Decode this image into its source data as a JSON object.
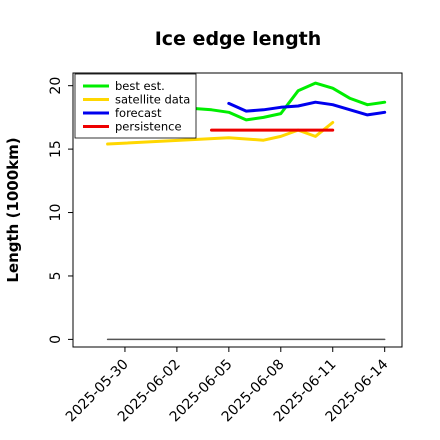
{
  "chart_data": {
    "type": "line",
    "title": "Ice edge length",
    "xlabel": "",
    "ylabel": "Length (1000km)",
    "x_type": "date",
    "xlim": [
      "2025-05-27",
      "2025-06-15"
    ],
    "ylim": [
      -0.6,
      21
    ],
    "x_ticks": [
      "2025-05-30",
      "2025-06-02",
      "2025-06-05",
      "2025-06-08",
      "2025-06-11",
      "2025-06-14"
    ],
    "x_tick_colors": [
      "#000000",
      "#000000",
      "#228B22",
      "#000000",
      "#000000",
      "#000000"
    ],
    "y_ticks": [
      0,
      5,
      10,
      15,
      20
    ],
    "grid": false,
    "legend_position": "top-left",
    "series": [
      {
        "name": "best est.",
        "color": "#00ee00",
        "x": [
          "2025-06-03",
          "2025-06-04",
          "2025-06-05",
          "2025-06-06",
          "2025-06-07",
          "2025-06-08",
          "2025-06-09",
          "2025-06-10",
          "2025-06-11",
          "2025-06-12",
          "2025-06-13",
          "2025-06-14"
        ],
        "y": [
          18.2,
          18.1,
          17.9,
          17.3,
          17.5,
          17.8,
          19.6,
          20.2,
          19.8,
          19.0,
          18.5,
          18.7
        ]
      },
      {
        "name": "satellite data",
        "color": "#ffd700",
        "x": [
          "2025-05-29",
          "2025-06-05",
          "2025-06-07",
          "2025-06-08",
          "2025-06-09",
          "2025-06-10",
          "2025-06-11"
        ],
        "y": [
          15.4,
          15.9,
          15.7,
          16.0,
          16.5,
          16.0,
          17.1
        ]
      },
      {
        "name": "forecast",
        "color": "#0000ee",
        "x": [
          "2025-06-05",
          "2025-06-06",
          "2025-06-07",
          "2025-06-08",
          "2025-06-09",
          "2025-06-10",
          "2025-06-11",
          "2025-06-12",
          "2025-06-13",
          "2025-06-14"
        ],
        "y": [
          18.6,
          18.0,
          18.1,
          18.3,
          18.4,
          18.7,
          18.5,
          18.1,
          17.7,
          17.9
        ]
      },
      {
        "name": "persistence",
        "color": "#ee0000",
        "x": [
          "2025-06-04",
          "2025-06-11"
        ],
        "y": [
          16.5,
          16.5
        ]
      },
      {
        "name": "",
        "color": "#555555",
        "x": [
          "2025-05-29",
          "2025-06-14"
        ],
        "y": [
          0,
          0
        ]
      }
    ]
  }
}
